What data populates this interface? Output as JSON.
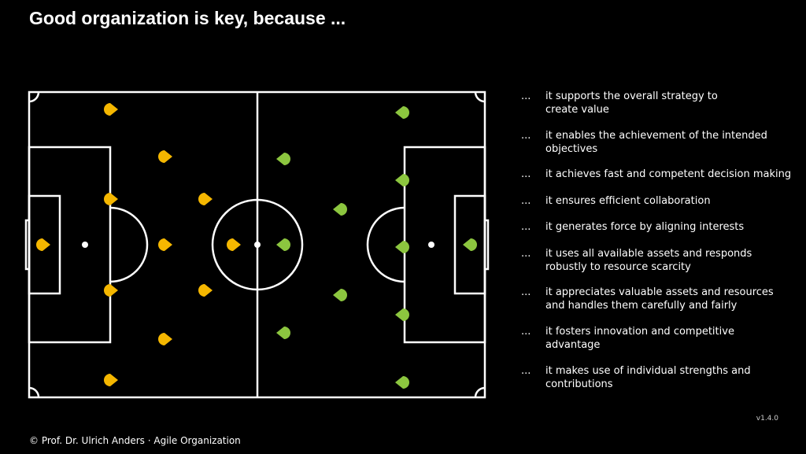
{
  "header": {
    "title": "Good organization is key, because ..."
  },
  "list": {
    "bullet": "...",
    "items": [
      [
        "it supports the overall strategy to",
        "create value"
      ],
      [
        "it enables the achievement of the intended",
        "objectives"
      ],
      [
        "it achieves fast and competent decision making"
      ],
      [
        "it ensures efficient collaboration"
      ],
      [
        "it generates force by aligning interests"
      ],
      [
        "it uses all available assets and responds",
        "robustly to resource scarcity"
      ],
      [
        "it appreciates valuable assets and resources",
        "and handles them carefully and fairly"
      ],
      [
        "it fosters innovation and competitive",
        "advantage"
      ],
      [
        "it makes use of individual strengths and",
        "contributions"
      ]
    ]
  },
  "footer": {
    "copyright": "© Prof. Dr. Ulrich Anders · Agile Organization",
    "version": "v1.4.0"
  }
}
